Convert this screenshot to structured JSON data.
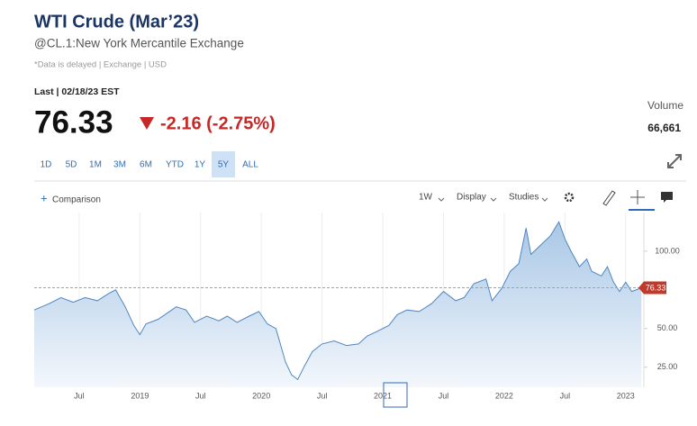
{
  "quote": {
    "title": "WTI Crude (Mar’23)",
    "subtitle": "@CL.1:New York Mercantile Exchange",
    "note": "*Data is delayed | Exchange | USD",
    "last_label": "Last | 02/18/23 EST",
    "price": "76.33",
    "change": "-2.16 (-2.75%)",
    "volume_label": "Volume",
    "volume": "66,661"
  },
  "ranges": {
    "items": [
      "1D",
      "5D",
      "1M",
      "3M",
      "6M",
      "YTD",
      "1Y",
      "5Y",
      "ALL"
    ],
    "active": "5Y"
  },
  "toolbar": {
    "comparison": "Comparison",
    "interval": "1W",
    "display": "Display",
    "studies": "Studies"
  },
  "chart_data": {
    "type": "area",
    "color": "#4f86c2",
    "x": [
      2018.13,
      2018.25,
      2018.35,
      2018.45,
      2018.55,
      2018.65,
      2018.75,
      2018.8,
      2018.88,
      2018.95,
      2019.0,
      2019.05,
      2019.15,
      2019.3,
      2019.38,
      2019.45,
      2019.55,
      2019.65,
      2019.72,
      2019.8,
      2019.9,
      2019.98,
      2020.05,
      2020.12,
      2020.2,
      2020.25,
      2020.3,
      2020.35,
      2020.42,
      2020.5,
      2020.6,
      2020.7,
      2020.8,
      2020.87,
      2020.95,
      2021.05,
      2021.12,
      2021.2,
      2021.3,
      2021.4,
      2021.5,
      2021.6,
      2021.67,
      2021.75,
      2021.85,
      2021.9,
      2021.98,
      2022.05,
      2022.12,
      2022.18,
      2022.22,
      2022.3,
      2022.38,
      2022.45,
      2022.5,
      2022.55,
      2022.62,
      2022.68,
      2022.72,
      2022.8,
      2022.85,
      2022.9,
      2022.95,
      2023.0,
      2023.05,
      2023.13
    ],
    "values": [
      62,
      66,
      70,
      67,
      70,
      68,
      73,
      75,
      64,
      52,
      46,
      53,
      56,
      64,
      62,
      54,
      58,
      55,
      58,
      54,
      58,
      61,
      53,
      50,
      28,
      20,
      17,
      25,
      35,
      40,
      42,
      39,
      40,
      45,
      48,
      52,
      59,
      62,
      61,
      66,
      74,
      68,
      70,
      79,
      82,
      68,
      76,
      87,
      92,
      115,
      98,
      104,
      110,
      119,
      108,
      100,
      90,
      95,
      87,
      84,
      90,
      80,
      74,
      80,
      74,
      76.33
    ],
    "last_value": 76.33,
    "xlim": [
      2018.13,
      2023.15
    ],
    "xticks": [
      {
        "value": 2018.5,
        "label": "Jul"
      },
      {
        "value": 2019,
        "label": "2019"
      },
      {
        "value": 2019.5,
        "label": "Jul"
      },
      {
        "value": 2020,
        "label": "2020"
      },
      {
        "value": 2020.5,
        "label": "Jul"
      },
      {
        "value": 2021,
        "label": "2021"
      },
      {
        "value": 2021.5,
        "label": "Jul"
      },
      {
        "value": 2022,
        "label": "2022"
      },
      {
        "value": 2022.5,
        "label": "Jul"
      },
      {
        "value": 2023,
        "label": "2023"
      }
    ],
    "ylim": [
      12,
      125
    ],
    "yticks": [
      {
        "value": 25,
        "label": "25.00"
      },
      {
        "value": 50,
        "label": "50.00"
      },
      {
        "value": 100,
        "label": "100.00"
      }
    ],
    "grid": true
  }
}
